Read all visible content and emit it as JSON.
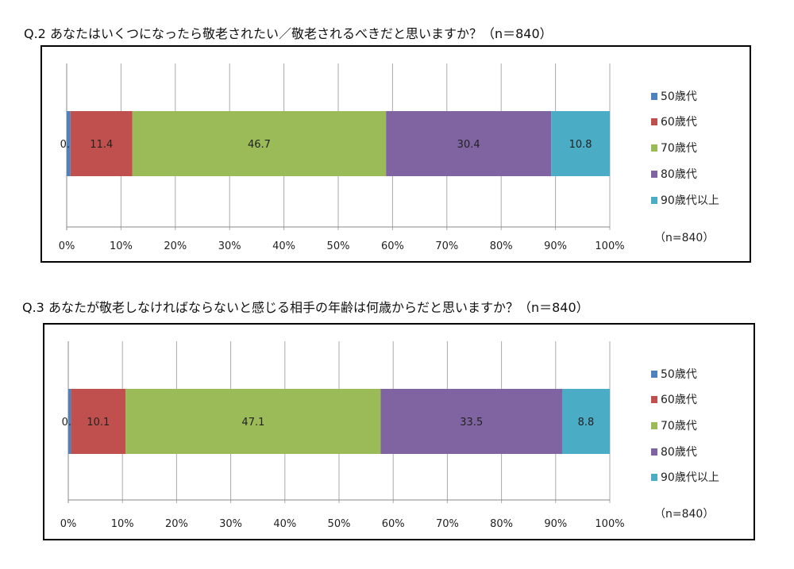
{
  "chart_data": [
    {
      "type": "bar",
      "orientation": "horizontal-stacked-100",
      "title": "Q.2 あなたはいくつになったら敬老されたい／敬老されるべきだと思いますか？（n＝840）",
      "categories": [
        ""
      ],
      "series": [
        {
          "name": "50歳代",
          "values": [
            0.7
          ],
          "color": "#4f81bd"
        },
        {
          "name": "60歳代",
          "values": [
            11.4
          ],
          "color": "#c0504d"
        },
        {
          "name": "70歳代",
          "values": [
            46.7
          ],
          "color": "#9bbb59"
        },
        {
          "name": "80歳代",
          "values": [
            30.4
          ],
          "color": "#8064a2"
        },
        {
          "name": "90歳代以上",
          "values": [
            10.8
          ],
          "color": "#4bacc6"
        }
      ],
      "xticks": [
        "0%",
        "10%",
        "20%",
        "30%",
        "40%",
        "50%",
        "60%",
        "70%",
        "80%",
        "90%",
        "100%"
      ],
      "xlim": [
        0,
        100
      ],
      "grid": true,
      "legend": "right",
      "legend_note": "（n=840）"
    },
    {
      "type": "bar",
      "orientation": "horizontal-stacked-100",
      "title": "Q.3 あなたが敬老しなければならないと感じる相手の年齢は何歳からだと思いますか？（n＝840）",
      "categories": [
        ""
      ],
      "series": [
        {
          "name": "50歳代",
          "values": [
            0.5
          ],
          "color": "#4f81bd"
        },
        {
          "name": "60歳代",
          "values": [
            10.1
          ],
          "color": "#c0504d"
        },
        {
          "name": "70歳代",
          "values": [
            47.1
          ],
          "color": "#9bbb59"
        },
        {
          "name": "80歳代",
          "values": [
            33.5
          ],
          "color": "#8064a2"
        },
        {
          "name": "90歳代以上",
          "values": [
            8.8
          ],
          "color": "#4bacc6"
        }
      ],
      "xticks": [
        "0%",
        "10%",
        "20%",
        "30%",
        "40%",
        "50%",
        "60%",
        "70%",
        "80%",
        "90%",
        "100%"
      ],
      "xlim": [
        0,
        100
      ],
      "grid": true,
      "legend": "right",
      "legend_note": "（n=840）"
    }
  ]
}
